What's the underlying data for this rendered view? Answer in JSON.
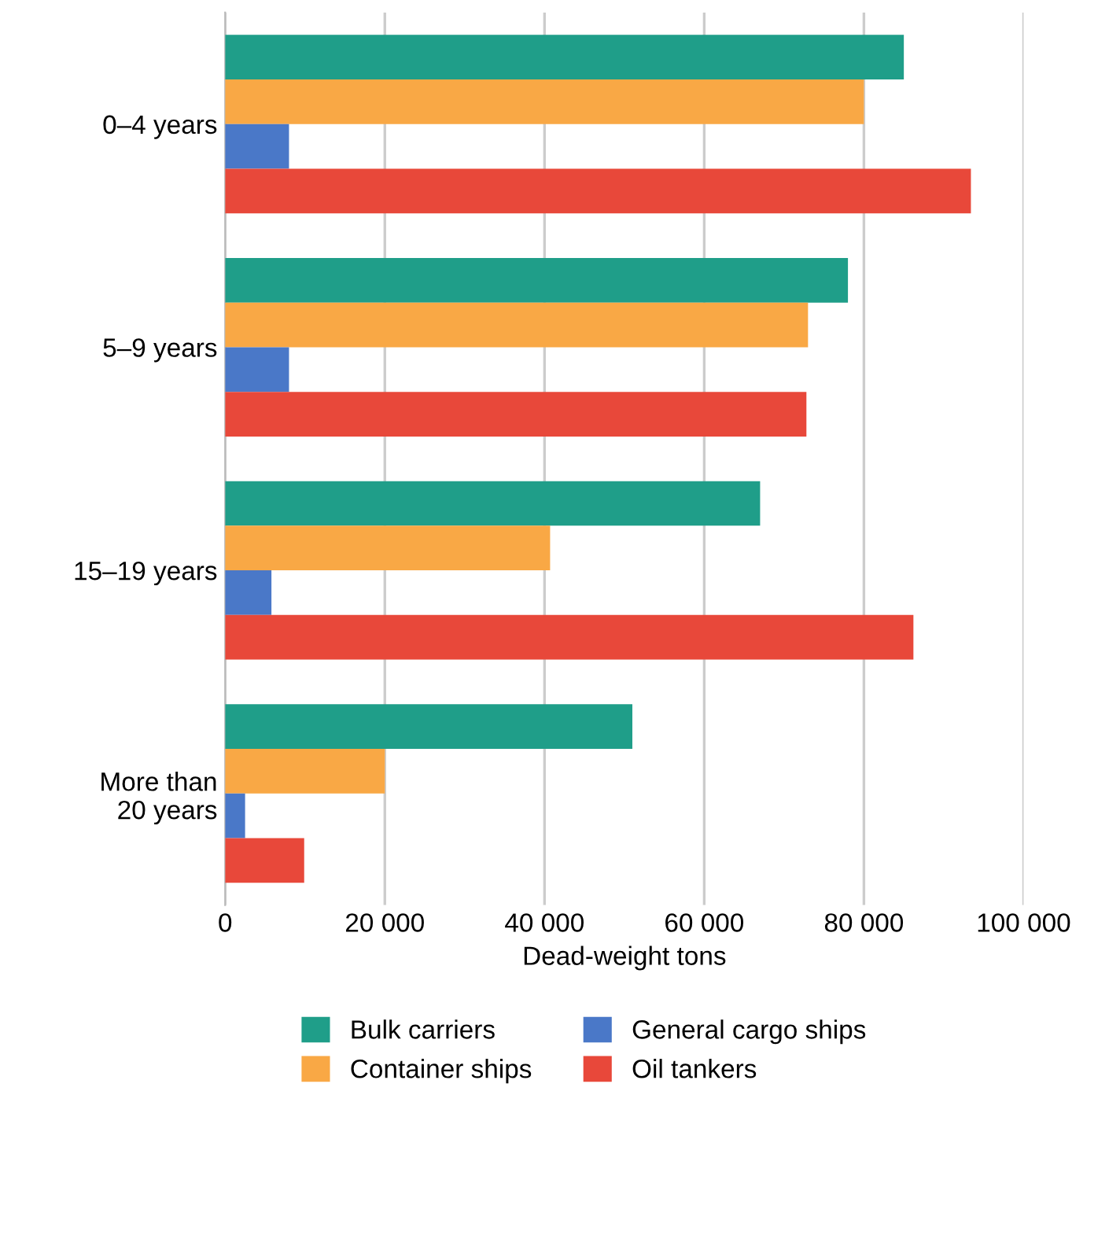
{
  "chart_data": {
    "type": "bar",
    "orientation": "horizontal",
    "xlabel": "Dead-weight tons",
    "categories": [
      "0–4 years",
      "5–9 years",
      "15–19 years",
      "More than\n20 years"
    ],
    "series": [
      {
        "name": "Bulk carriers",
        "color": "#1f9e89",
        "values": [
          85000,
          78000,
          67000,
          51000
        ]
      },
      {
        "name": "Container ships",
        "color": "#f9a845",
        "values": [
          80000,
          73000,
          40700,
          20000
        ]
      },
      {
        "name": "General cargo ships",
        "color": "#4a78c8",
        "values": [
          8000,
          8000,
          5800,
          2500
        ]
      },
      {
        "name": "Oil tankers",
        "color": "#e8483a",
        "values": [
          93400,
          72800,
          86200,
          9900
        ]
      }
    ],
    "xlim": [
      0,
      100000
    ],
    "xticks": [
      0,
      {
        "value": 20000,
        "label": "20 000"
      },
      {
        "value": 40000,
        "label": "40 000"
      },
      {
        "value": 60000,
        "label": "60 000"
      },
      {
        "value": 80000,
        "label": "80 000"
      },
      {
        "value": 100000,
        "label": "100 000"
      }
    ],
    "grid": "x",
    "legend": "bottom"
  }
}
